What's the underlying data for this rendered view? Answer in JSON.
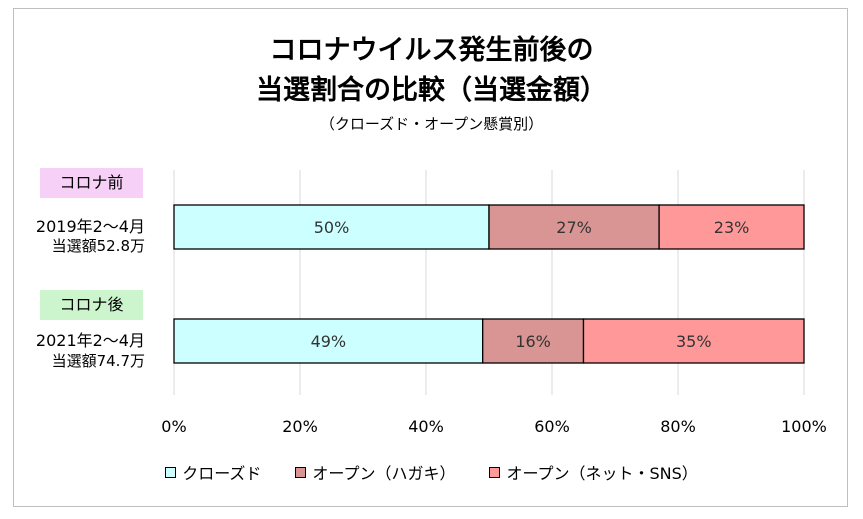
{
  "chart_data": {
    "type": "bar",
    "orientation": "horizontal",
    "stacked": true,
    "title_lines": [
      "コロナウイルス発生前後の",
      "当選割合の比較（当選金額）"
    ],
    "subtitle": "（クローズド・オープン懸賞別）",
    "categories": [
      {
        "badge": "コロナ前",
        "period": "2019年2～4月",
        "total": "当選額52.8万"
      },
      {
        "badge": "コロナ後",
        "period": "2021年2～4月",
        "total": "当選額74.7万"
      }
    ],
    "series": [
      {
        "name": "クローズド",
        "values": [
          50,
          49
        ],
        "labels": [
          "50%",
          "49%"
        ],
        "color": "#ccffff"
      },
      {
        "name": "オープン（ハガキ）",
        "values": [
          27,
          16
        ],
        "labels": [
          "27%",
          "16%"
        ],
        "color": "#d99594"
      },
      {
        "name": "オープン（ネット・SNS）",
        "values": [
          23,
          35
        ],
        "labels": [
          "23%",
          "35%"
        ],
        "color": "#ff9999"
      }
    ],
    "x_ticks": [
      "0%",
      "20%",
      "40%",
      "60%",
      "80%",
      "100%"
    ],
    "xlim": [
      0,
      100
    ],
    "grid": true,
    "legend_position": "bottom"
  }
}
